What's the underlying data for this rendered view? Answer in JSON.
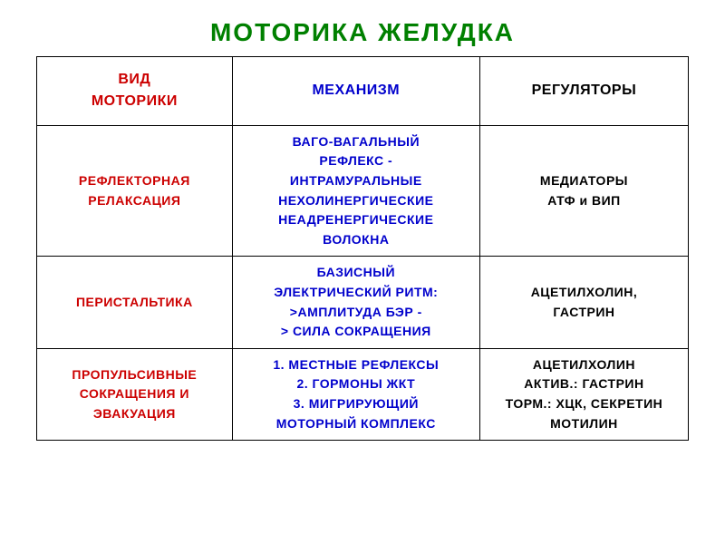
{
  "title": "МОТОРИКА  ЖЕЛУДКА",
  "title_color": "#008000",
  "table": {
    "border_color": "#000000",
    "colors": {
      "red": "#cc0000",
      "blue": "#0000cc",
      "black": "#000000"
    },
    "header": {
      "col1_line1": "ВИД",
      "col1_line2": "МОТОРИКИ",
      "col2": "МЕХАНИЗМ",
      "col3": "РЕГУЛЯТОРЫ"
    },
    "rows": [
      {
        "col1_lines": [
          "РЕФЛЕКТОРНАЯ",
          "РЕЛАКСАЦИЯ"
        ],
        "col2_lines": [
          "ВАГО-ВАГАЛЬНЫЙ",
          "РЕФЛЕКС -",
          "ИНТРАМУРАЛЬНЫЕ",
          "НЕХОЛИНЕРГИЧЕСКИЕ",
          "НЕАДРЕНЕРГИЧЕСКИЕ",
          "ВОЛОКНА"
        ],
        "col3_lines": [
          "МЕДИАТОРЫ",
          "АТФ и ВИП"
        ]
      },
      {
        "col1_lines": [
          "ПЕРИСТАЛЬТИКА"
        ],
        "col2_lines": [
          "БАЗИСНЫЙ",
          "ЭЛЕКТРИЧЕСКИЙ РИТМ:",
          ">АМПЛИТУДА БЭР -",
          "> СИЛА СОКРАЩЕНИЯ"
        ],
        "col3_lines": [
          "АЦЕТИЛХОЛИН,",
          "ГАСТРИН"
        ]
      },
      {
        "col1_lines": [
          "ПРОПУЛЬСИВНЫЕ",
          "СОКРАЩЕНИЯ И",
          "ЭВАКУАЦИЯ"
        ],
        "col2_lines": [
          "1. МЕСТНЫЕ РЕФЛЕКСЫ",
          "2. ГОРМОНЫ ЖКТ",
          "3. МИГРИРУЮЩИЙ",
          "МОТОРНЫЙ КОМПЛЕКС"
        ],
        "col3_lines": [
          "АЦЕТИЛХОЛИН",
          "АКТИВ.: ГАСТРИН",
          "ТОРМ.: ХЦК, СЕКРЕТИН",
          "МОТИЛИН"
        ]
      }
    ]
  }
}
